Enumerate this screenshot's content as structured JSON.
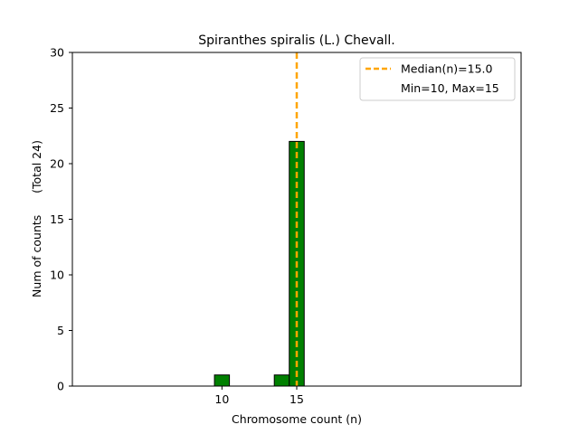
{
  "chart_data": {
    "type": "bar",
    "title": "Spiranthes spiralis (L.) Chevall.",
    "xlabel": "Chromosome count (n)",
    "ylabel": "Num of counts      (Total 24)",
    "xlim": [
      0,
      30
    ],
    "ylim": [
      0,
      30
    ],
    "x_ticks": [
      10,
      15
    ],
    "y_ticks": [
      0,
      5,
      10,
      15,
      20,
      25,
      30
    ],
    "bin_width": 1,
    "bars": [
      {
        "x": 10,
        "count": 1
      },
      {
        "x": 14,
        "count": 1
      },
      {
        "x": 15,
        "count": 22
      },
      {
        "x": 16,
        "count": 0
      },
      {
        "x": 17,
        "count": 0
      },
      {
        "x": 18,
        "count": 0
      }
    ],
    "median": 15.0,
    "legend": {
      "position": "top-right",
      "entries": [
        "Median(n)=15.0",
        "Min=10, Max=15"
      ]
    },
    "colors": {
      "bar_fill": "#008000",
      "bar_edge": "#000000",
      "median_line": "#ffa500"
    }
  }
}
